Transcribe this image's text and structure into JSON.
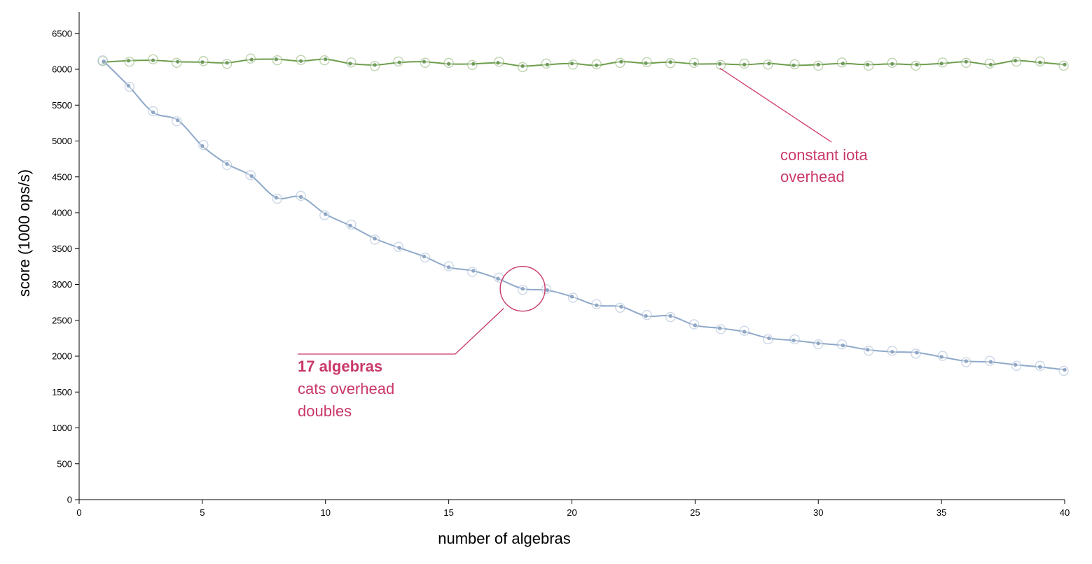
{
  "chart_data": {
    "type": "line",
    "title": "",
    "xlabel": "number of algebras",
    "ylabel": "score (1000 ops/s)",
    "xlim": [
      0,
      40
    ],
    "ylim": [
      0,
      6800
    ],
    "x_ticks": [
      "0",
      "5",
      "10",
      "15",
      "20",
      "25",
      "30",
      "35",
      "40"
    ],
    "y_ticks": [
      "0",
      "500",
      "1000",
      "1500",
      "2000",
      "2500",
      "3000",
      "3500",
      "4000",
      "4500",
      "5000",
      "5500",
      "6000",
      "6500"
    ],
    "grid": false,
    "x": [
      1,
      2,
      3,
      4,
      5,
      6,
      7,
      8,
      9,
      10,
      11,
      12,
      13,
      14,
      15,
      16,
      17,
      18,
      19,
      20,
      21,
      22,
      23,
      24,
      25,
      26,
      27,
      28,
      29,
      30,
      31,
      32,
      33,
      34,
      35,
      36,
      37,
      38,
      39,
      40
    ],
    "series": [
      {
        "color": "#6e9e4e",
        "values": [
          6100,
          6120,
          6125,
          6105,
          6100,
          6090,
          6135,
          6140,
          6115,
          6140,
          6080,
          6060,
          6095,
          6105,
          6075,
          6075,
          6090,
          6045,
          6065,
          6080,
          6055,
          6105,
          6085,
          6100,
          6075,
          6075,
          6065,
          6080,
          6055,
          6065,
          6080,
          6065,
          6075,
          6065,
          6080,
          6105,
          6065,
          6120,
          6095,
          6065
        ]
      },
      {
        "color": "#8fa9c9",
        "values": [
          6110,
          5770,
          5400,
          5290,
          4930,
          4680,
          4510,
          4210,
          4220,
          3980,
          3820,
          3640,
          3510,
          3390,
          3240,
          3190,
          3080,
          2940,
          2920,
          2830,
          2710,
          2690,
          2560,
          2560,
          2430,
          2390,
          2340,
          2250,
          2220,
          2180,
          2150,
          2090,
          2060,
          2050,
          1990,
          1930,
          1920,
          1880,
          1850,
          1810
        ]
      }
    ],
    "annotations": [
      {
        "id": "iota",
        "color": "#c9386a",
        "lines": [
          "constant iota",
          "overhead"
        ],
        "bold_first": false,
        "pointer": {
          "x": 26,
          "y": 5900
        }
      },
      {
        "id": "cats",
        "color": "#c9386a",
        "lines": [
          "17 algebras",
          "cats overhead",
          "doubles"
        ],
        "bold_first": true,
        "circle": {
          "x": 18,
          "y": 2940
        }
      }
    ]
  }
}
